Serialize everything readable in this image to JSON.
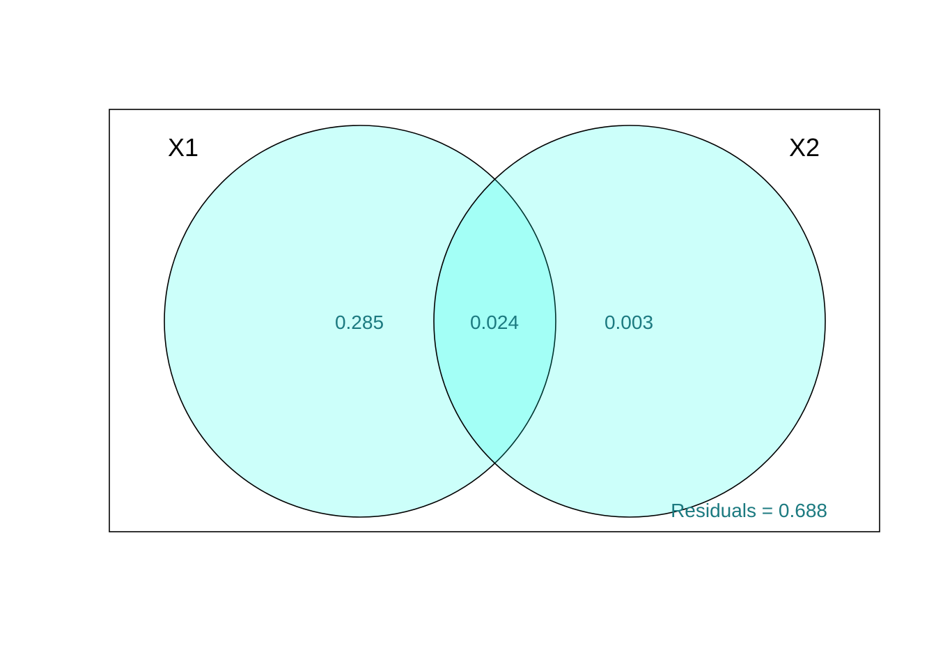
{
  "diagram": {
    "type": "venn",
    "sets": [
      {
        "name": "X1"
      },
      {
        "name": "X2"
      }
    ],
    "regions": {
      "x1_only": "0.285",
      "intersection": "0.024",
      "x2_only": "0.003"
    },
    "residuals": "Residuals = 0.688"
  },
  "colors": {
    "circle_fill": "#00FFE6",
    "circle_fill_opacity": 0.2,
    "circle_stroke": "#000000",
    "value_text": "#1C7A80",
    "label_text": "#000000",
    "frame_stroke": "#000000"
  }
}
